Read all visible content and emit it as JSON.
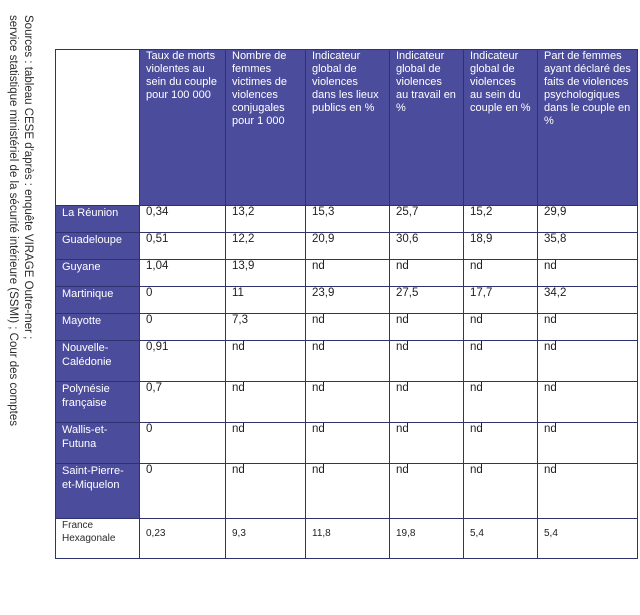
{
  "sources": {
    "line1": "Sources : tableau CESE d'après : enquête VIRAGE Outre-mer ;",
    "line2": "service statistique ministériel de la sécurité intérieure (SSMI) ; Cour des comptes"
  },
  "table": {
    "columns": [
      "Taux de morts violentes au sein du couple pour 100 000",
      "Nombre de femmes victimes de violences conjugales pour 1 000",
      "Indicateur global de violences dans les lieux publics en %",
      "Indicateur global de violences au travail en %",
      "Indicateur global de violences au sein du couple en %",
      "Part de femmes ayant déclaré des faits de violences psychologiques dans le couple en %"
    ],
    "rows": [
      {
        "label": "La Réunion",
        "values": [
          "0,34",
          "13,2",
          "15,3",
          "25,7",
          "15,2",
          "29,9"
        ]
      },
      {
        "label": "Guadeloupe",
        "values": [
          "0,51",
          "12,2",
          "20,9",
          "30,6",
          "18,9",
          "35,8"
        ]
      },
      {
        "label": "Guyane",
        "values": [
          "1,04",
          "13,9",
          "nd",
          "nd",
          "nd",
          "nd"
        ]
      },
      {
        "label": "Martinique",
        "values": [
          "0",
          "11",
          "23,9",
          "27,5",
          "17,7",
          "34,2"
        ]
      },
      {
        "label": "Mayotte",
        "values": [
          "0",
          "7,3",
          "nd",
          "nd",
          "nd",
          "nd"
        ]
      },
      {
        "label": "Nouvelle-Calédonie",
        "values": [
          "0,91",
          "nd",
          "nd",
          "nd",
          "nd",
          "nd"
        ]
      },
      {
        "label": "Polynésie française",
        "values": [
          "0,7",
          "nd",
          "nd",
          "nd",
          "nd",
          "nd"
        ]
      },
      {
        "label": "Wallis-et-Futuna",
        "values": [
          "0",
          "nd",
          "nd",
          "nd",
          "nd",
          "nd"
        ]
      },
      {
        "label": "Saint-Pierre-et-Miquelon",
        "values": [
          "0",
          "nd",
          "nd",
          "nd",
          "nd",
          "nd"
        ]
      },
      {
        "label": "France Hexagonale",
        "values": [
          "0,23",
          "9,3",
          "11,8",
          "19,8",
          "5,4",
          "5,4"
        ]
      }
    ]
  },
  "colors": {
    "header_bg": "#4c4c9c",
    "border": "#2f3270"
  }
}
